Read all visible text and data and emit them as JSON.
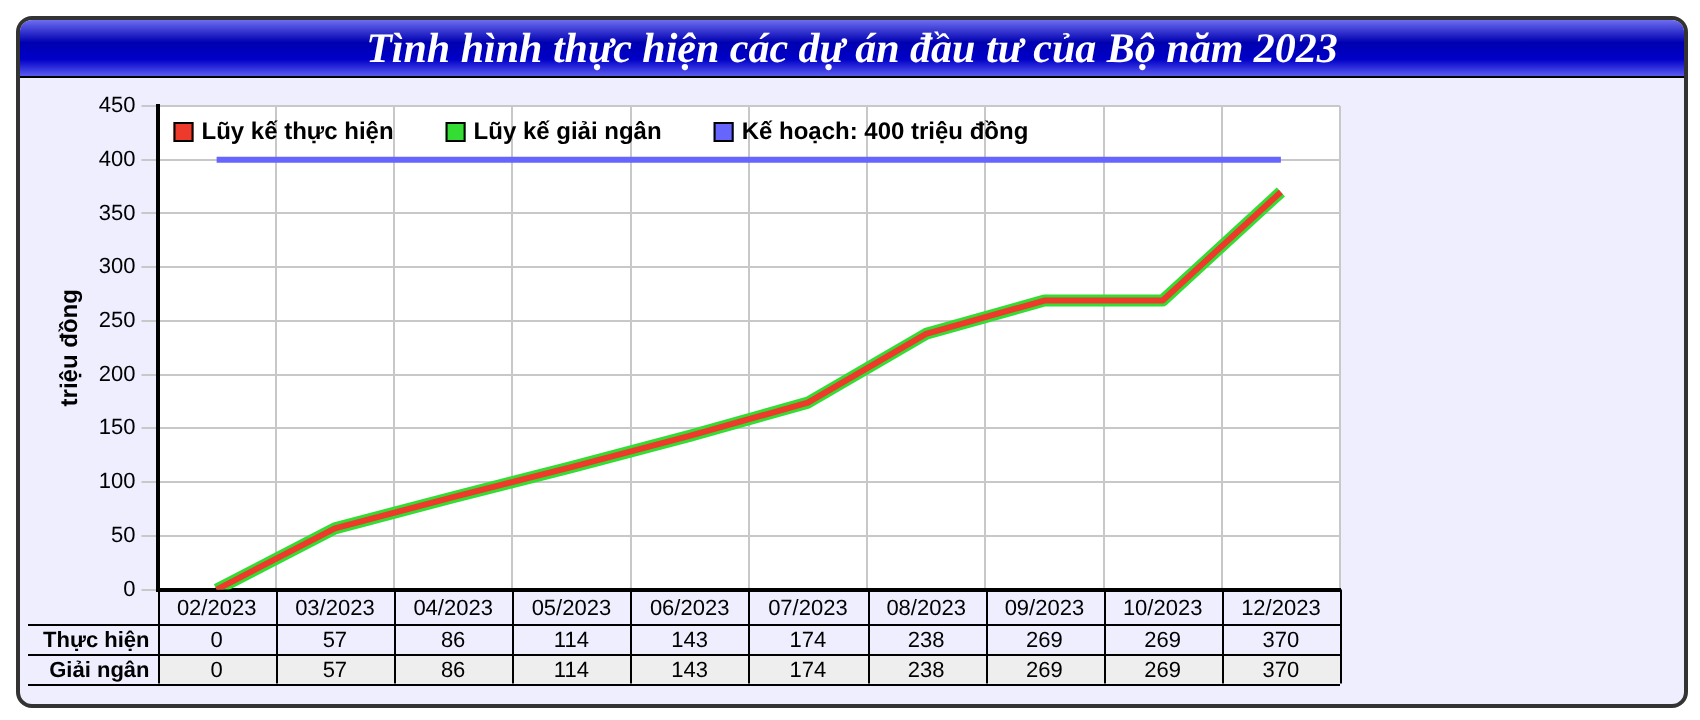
{
  "chart_data": {
    "type": "line",
    "title": "Tình hình thực hiện các dự án đầu tư của Bộ năm 2023",
    "ylabel": "triệu đồng",
    "categories": [
      "02/2023",
      "03/2023",
      "04/2023",
      "05/2023",
      "06/2023",
      "07/2023",
      "08/2023",
      "09/2023",
      "10/2023",
      "12/2023"
    ],
    "series": [
      {
        "name": "Lũy kế thực hiện",
        "color": "#ee3a2a",
        "values": [
          0,
          57,
          86,
          114,
          143,
          174,
          238,
          269,
          269,
          370
        ],
        "value_labels": [
          "0",
          "57",
          "86",
          "114",
          "143",
          "174",
          "238",
          "269",
          "269",
          "370"
        ]
      },
      {
        "name": "Lũy kế giải ngân",
        "color": "#33dd33",
        "values": [
          0,
          57,
          86,
          114,
          143,
          174,
          238,
          269,
          269,
          370
        ],
        "value_labels": [
          "0",
          "57",
          "86",
          "114",
          "143",
          "174",
          "238",
          "269",
          "269",
          "370"
        ]
      },
      {
        "name": "Kế hoạch: 400 triệu đồng",
        "color": "#6666ff",
        "values": [
          400,
          400,
          400,
          400,
          400,
          400,
          400,
          400,
          400,
          400
        ]
      }
    ],
    "annotations": [
      "Thực hiện",
      "Giải ngân"
    ],
    "ylim": [
      0,
      450
    ],
    "yticks": [
      0,
      50,
      100,
      150,
      200,
      250,
      300,
      350,
      400,
      450
    ],
    "grid": true,
    "legend": "top left",
    "marker": "none",
    "line_style": "solid"
  }
}
